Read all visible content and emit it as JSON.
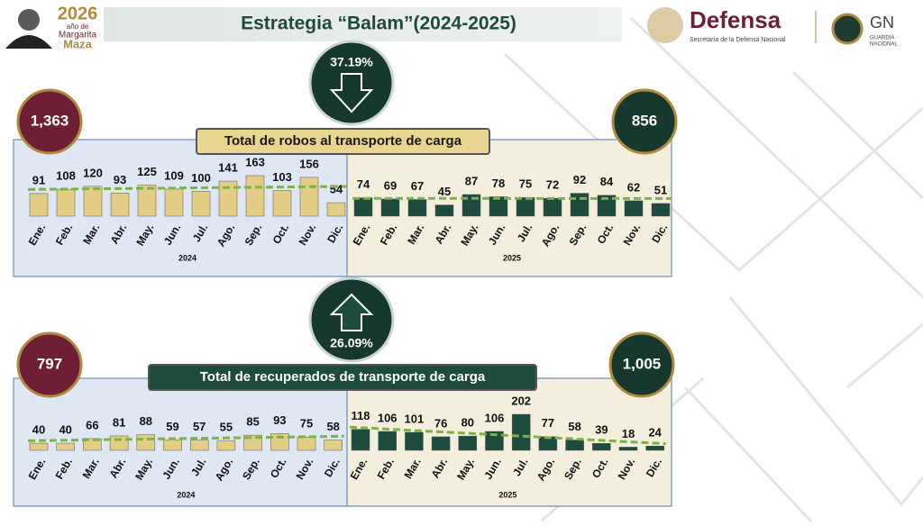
{
  "header": {
    "year": "2026",
    "line_1": "año de",
    "line_2": "Margarita",
    "line_3": "Maza",
    "title": "Estrategia “Balam”(2024-2025)",
    "org": "Defensa",
    "org_subtitle": "Secretaría de la Defensa Nacional",
    "gn": "GN",
    "gn_subtitle_1": "GUARDIA",
    "gn_subtitle_2": "NACIONAL"
  },
  "panels": [
    {
      "title": "Total de robos al transporte de carga",
      "total_2024": "1,363",
      "total_2025": "856",
      "change": "37.19%",
      "direction": "down"
    },
    {
      "title": "Total de recuperados de transporte de carga",
      "total_2024": "797",
      "total_2025": "1,005",
      "change": "26.09%",
      "direction": "up"
    }
  ],
  "chart_data": [
    {
      "type": "bar",
      "x_label": "2024",
      "categories": [
        "Ene.",
        "Feb.",
        "Mar.",
        "Abr.",
        "May.",
        "Jun.",
        "Jul.",
        "Ago.",
        "Sep.",
        "Oct.",
        "Nov.",
        "Dic."
      ],
      "values": [
        91,
        108,
        120,
        93,
        125,
        109,
        100,
        141,
        163,
        103,
        156,
        54
      ],
      "color": "#e3cd85",
      "trendline": true,
      "trend_color": "#7cb342"
    },
    {
      "type": "bar",
      "x_label": "2025",
      "categories": [
        "Ene.",
        "Feb.",
        "Mar.",
        "Abr.",
        "May.",
        "Jun.",
        "Jul.",
        "Ago.",
        "Sep.",
        "Oct.",
        "Nov.",
        "Dic."
      ],
      "values": [
        74,
        69,
        67,
        45,
        87,
        78,
        75,
        72,
        92,
        84,
        62,
        51
      ],
      "color": "#1d4b3c",
      "trendline": true,
      "trend_color": "#7cb342"
    },
    {
      "type": "bar",
      "x_label": "2024",
      "categories": [
        "Ene.",
        "Feb.",
        "Mar.",
        "Abr.",
        "May.",
        "Jun.",
        "Jul.",
        "Ago.",
        "Sep.",
        "Oct.",
        "Nov.",
        "Dic."
      ],
      "values": [
        40,
        40,
        66,
        81,
        88,
        59,
        57,
        55,
        85,
        93,
        75,
        58
      ],
      "color": "#e3cd85",
      "trendline": true,
      "trend_color": "#7cb342"
    },
    {
      "type": "bar",
      "x_label": "2025",
      "categories": [
        "Ene.",
        "Feb.",
        "Mar.",
        "Abr.",
        "May.",
        "Jun.",
        "Jul.",
        "Ago.",
        "Sep.",
        "Oct.",
        "Nov.",
        "Dic."
      ],
      "values": [
        118,
        106,
        101,
        76,
        80,
        106,
        202,
        77,
        58,
        39,
        18,
        24
      ],
      "color": "#1d4b3c",
      "trendline": true,
      "trend_color": "#7cb342"
    }
  ]
}
